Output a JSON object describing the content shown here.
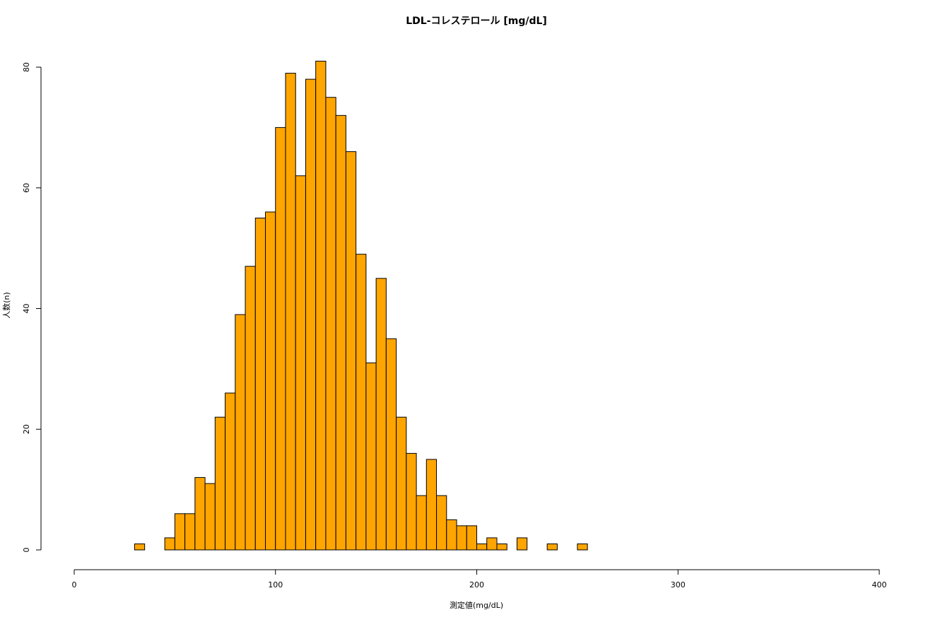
{
  "chart_data": {
    "type": "histogram",
    "title": "LDL-コレステロール [mg/dL]",
    "x_label": "測定値(mg/dL)",
    "y_label": "人数(n)",
    "color": "#ffa500",
    "bins": [
      30,
      35,
      40,
      45,
      50,
      55,
      60,
      65,
      70,
      75,
      80,
      85,
      90,
      95,
      100,
      105,
      110,
      115,
      120,
      125,
      130,
      135,
      140,
      145,
      150,
      155,
      160,
      165,
      170,
      175,
      180,
      185,
      190,
      195,
      200,
      205,
      210,
      215,
      220,
      225,
      230,
      235,
      240,
      245,
      250,
      255
    ],
    "counts": [
      1,
      0,
      0,
      2,
      6,
      6,
      12,
      11,
      22,
      26,
      39,
      47,
      55,
      56,
      70,
      79,
      62,
      78,
      81,
      75,
      72,
      66,
      49,
      31,
      45,
      35,
      22,
      16,
      9,
      15,
      9,
      5,
      4,
      4,
      1,
      2,
      1,
      0,
      2,
      0,
      0,
      1,
      0,
      0,
      1
    ],
    "xlim": [
      0,
      400
    ],
    "xticks": [
      0,
      100,
      200,
      300,
      400
    ],
    "ylim": [
      0,
      81
    ],
    "yticks": [
      0,
      20,
      40,
      60,
      80
    ]
  }
}
